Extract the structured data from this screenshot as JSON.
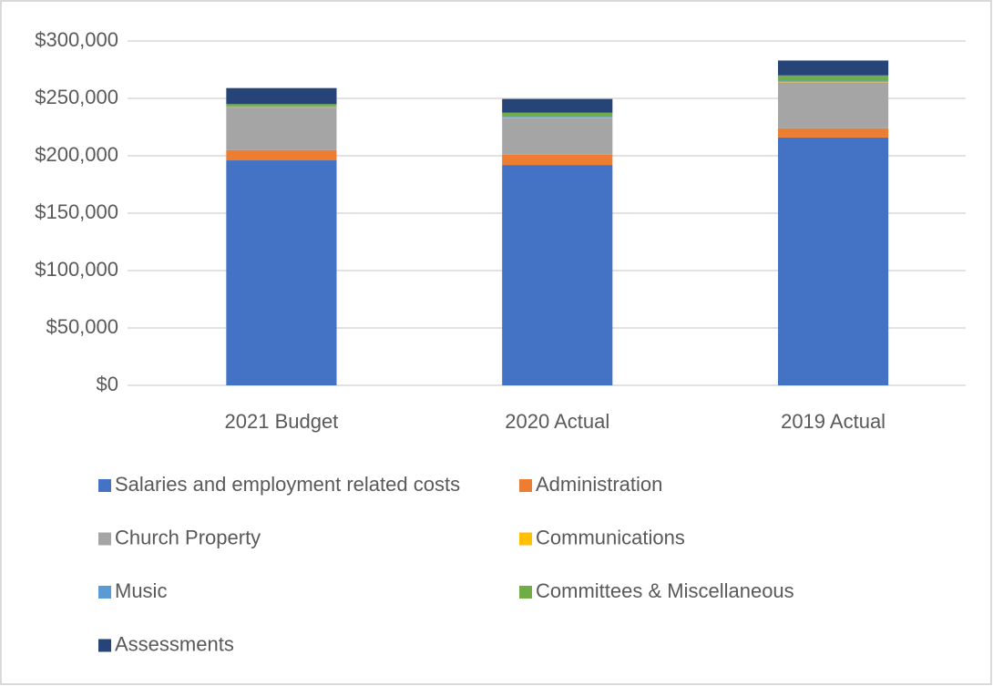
{
  "chart_data": {
    "type": "stacked_bar",
    "categories": [
      "2021 Budget",
      "2020 Actual",
      "2019 Actual"
    ],
    "series": [
      {
        "name": "Salaries and employment related costs",
        "color": "#4472c4",
        "values": [
          196000,
          192000,
          216000
        ]
      },
      {
        "name": "Administration",
        "color": "#ed7d31",
        "values": [
          9000,
          9000,
          8000
        ]
      },
      {
        "name": "Church Property",
        "color": "#a5a5a5",
        "values": [
          37000,
          32000,
          40000
        ]
      },
      {
        "name": "Communications",
        "color": "#ffc000",
        "values": [
          500,
          500,
          500
        ]
      },
      {
        "name": "Music",
        "color": "#5b9bd5",
        "values": [
          500,
          1000,
          1000
        ]
      },
      {
        "name": "Committees & Miscellaneous",
        "color": "#70ad47",
        "values": [
          2000,
          3000,
          4500
        ]
      },
      {
        "name": "Assessments",
        "color": "#264478",
        "values": [
          14000,
          12000,
          13000
        ]
      }
    ],
    "ylim": [
      0,
      300000
    ],
    "yticks": [
      {
        "value": 0,
        "label": "$0"
      },
      {
        "value": 50000,
        "label": "$50,000"
      },
      {
        "value": 100000,
        "label": "$100,000"
      },
      {
        "value": 150000,
        "label": "$150,000"
      },
      {
        "value": 200000,
        "label": "$200,000"
      },
      {
        "value": 250000,
        "label": "$250,000"
      },
      {
        "value": 300000,
        "label": "$300,000"
      }
    ],
    "grid": true,
    "legend": "bottom"
  }
}
